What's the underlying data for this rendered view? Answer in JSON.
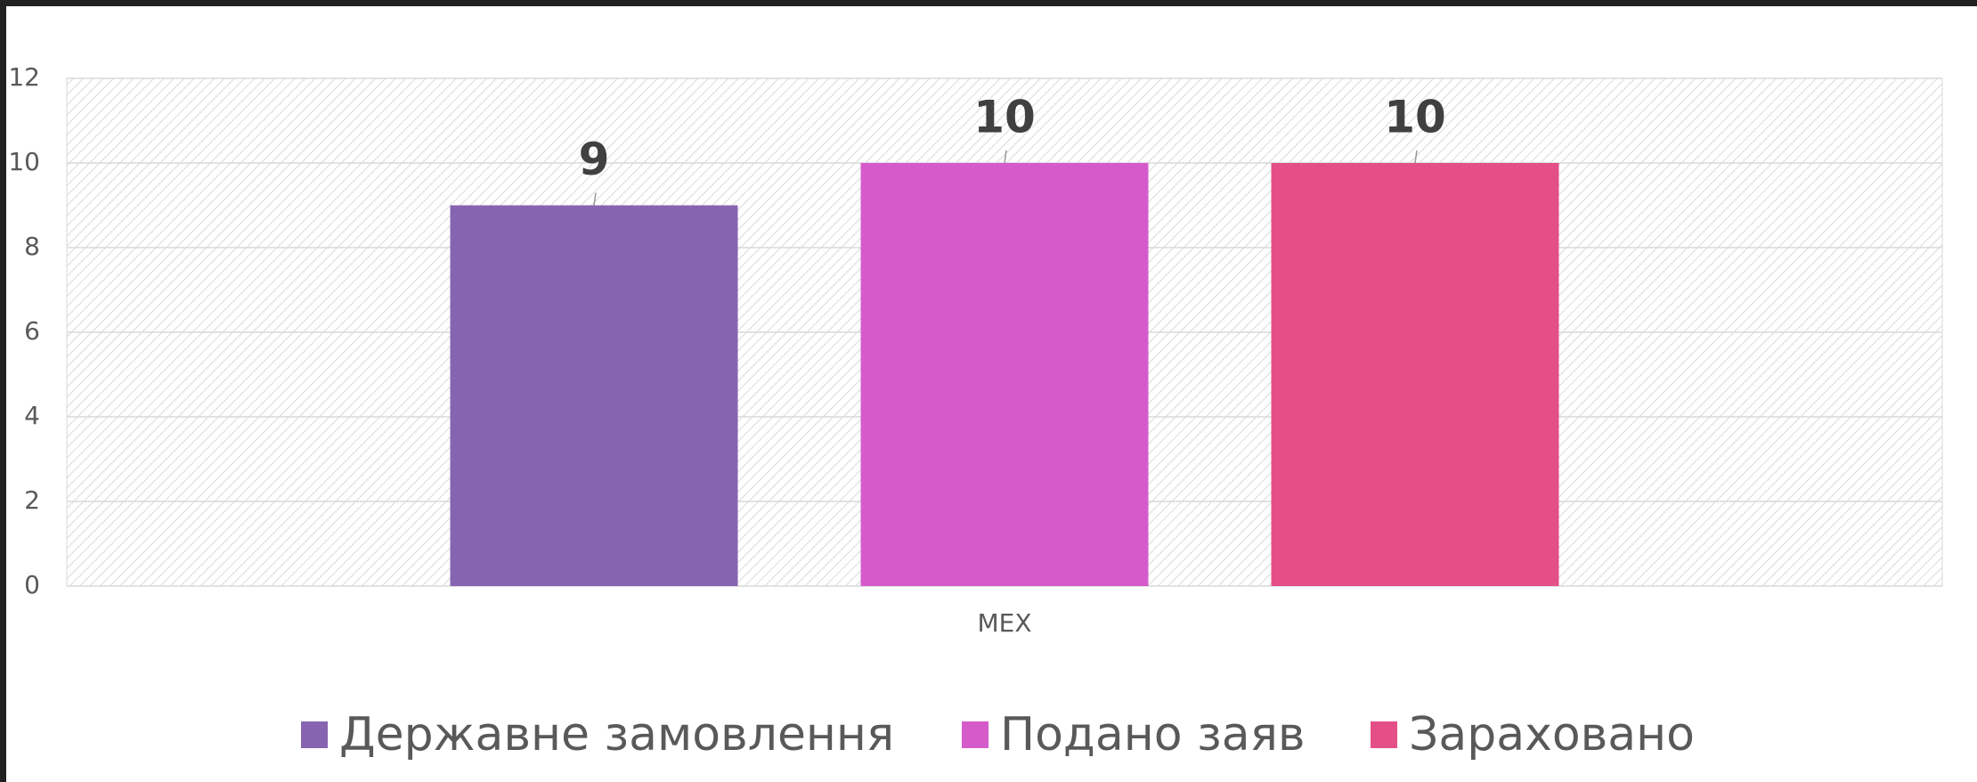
{
  "chart_data": {
    "type": "bar",
    "categories": [
      "МЕХ"
    ],
    "series": [
      {
        "name": "Державне замовлення",
        "color": "#8764b0",
        "values": [
          9
        ]
      },
      {
        "name": "Подано заяв",
        "color": "#d55bcb",
        "values": [
          10
        ]
      },
      {
        "name": "Зараховано",
        "color": "#e44f87",
        "values": [
          10
        ]
      }
    ],
    "ylim": [
      0,
      12
    ],
    "yticks": [
      0,
      2,
      4,
      6,
      8,
      10,
      12
    ],
    "grid": true,
    "legend": "bottom"
  }
}
